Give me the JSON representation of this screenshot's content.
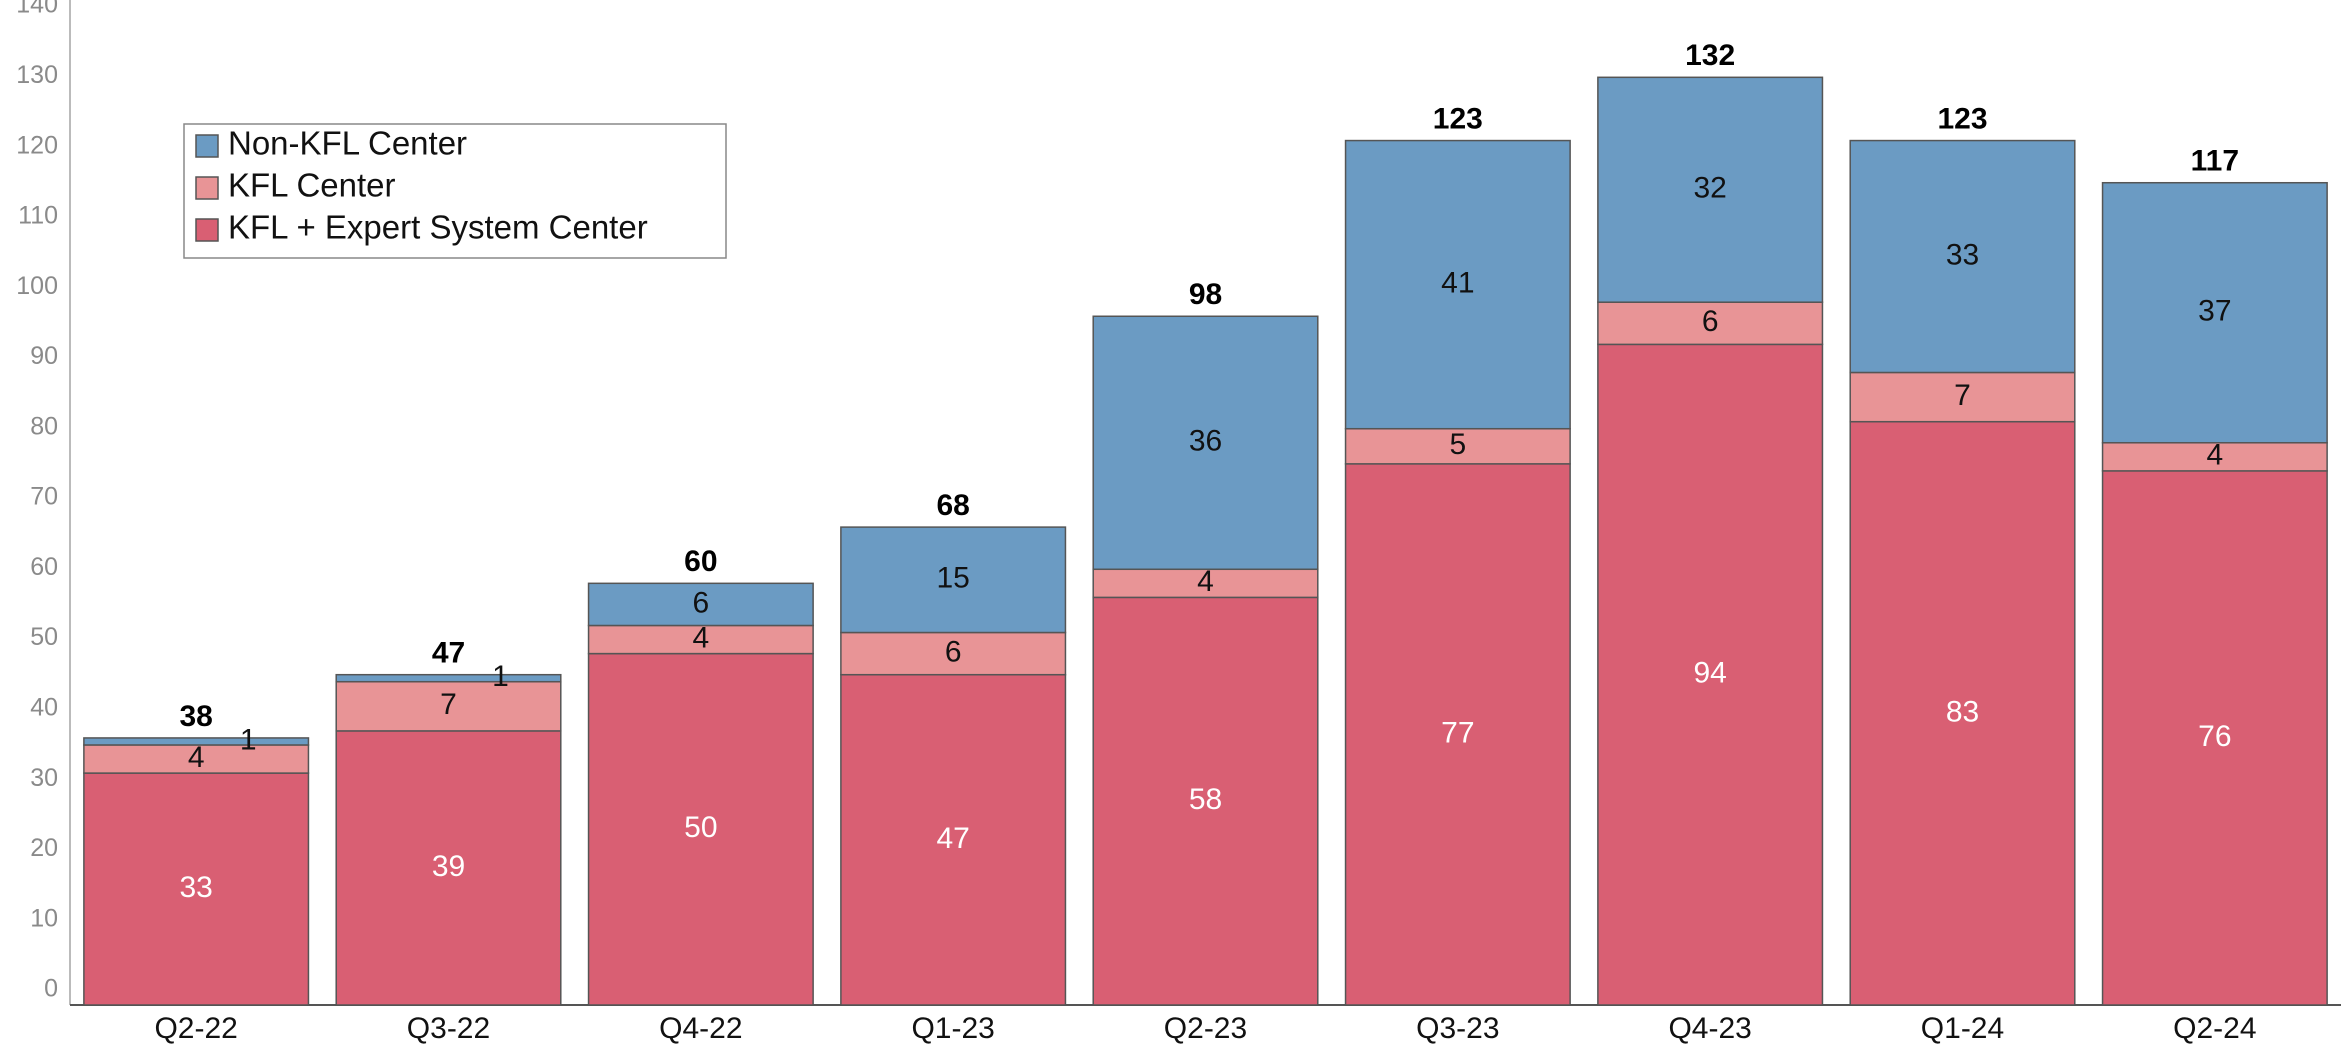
{
  "chart_data": {
    "type": "stacked_bar",
    "categories": [
      "Q2-22",
      "Q3-22",
      "Q4-22",
      "Q1-23",
      "Q2-23",
      "Q3-23",
      "Q4-23",
      "Q1-24",
      "Q2-24"
    ],
    "series": [
      {
        "name": "KFL + Expert System Center",
        "color": "#d95f73",
        "values": [
          33,
          39,
          50,
          47,
          58,
          77,
          94,
          83,
          76
        ]
      },
      {
        "name": "KFL Center",
        "color": "#e89496",
        "values": [
          4,
          7,
          4,
          6,
          4,
          5,
          6,
          7,
          4
        ]
      },
      {
        "name": "Non-KFL Center",
        "color": "#6b9bc3",
        "values": [
          1,
          1,
          6,
          15,
          36,
          41,
          32,
          33,
          37
        ]
      }
    ],
    "totals": [
      38,
      47,
      60,
      68,
      98,
      123,
      132,
      123,
      117
    ],
    "ylim": [
      0,
      143
    ],
    "yticks": [
      0,
      10,
      20,
      30,
      40,
      50,
      60,
      70,
      80,
      90,
      100,
      110,
      120,
      130,
      140
    ],
    "legend": "upper left"
  }
}
